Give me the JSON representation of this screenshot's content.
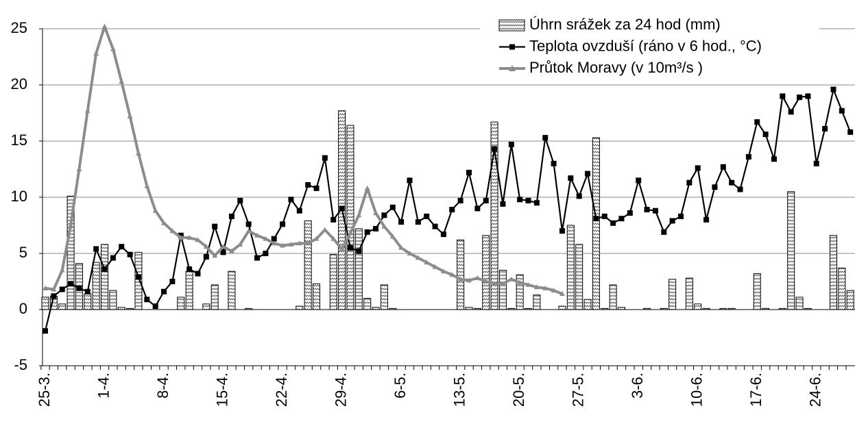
{
  "chart_data": {
    "type": "bar-line",
    "categories": [
      "25-3.",
      null,
      null,
      null,
      null,
      null,
      null,
      "1-4.",
      null,
      null,
      null,
      null,
      null,
      null,
      "8-4.",
      null,
      null,
      null,
      null,
      null,
      null,
      "15-4.",
      null,
      null,
      null,
      null,
      null,
      null,
      "22-4.",
      null,
      null,
      null,
      null,
      null,
      null,
      "29-4.",
      null,
      null,
      null,
      null,
      null,
      null,
      "6-5.",
      null,
      null,
      null,
      null,
      null,
      null,
      "13-5.",
      null,
      null,
      null,
      null,
      null,
      null,
      "20-5.",
      null,
      null,
      null,
      null,
      null,
      null,
      "27-5.",
      null,
      null,
      null,
      null,
      null,
      null,
      "3-6.",
      null,
      null,
      null,
      null,
      null,
      null,
      "10-6.",
      null,
      null,
      null,
      null,
      null,
      null,
      "17-6.",
      null,
      null,
      null,
      null,
      null,
      null,
      "24-6.",
      null,
      null,
      null,
      null
    ],
    "series": [
      {
        "name": "Úhrn srážek za 24 hod (mm)",
        "kind": "bar",
        "color": "#000000",
        "values": [
          1.1,
          1.2,
          0.5,
          10.1,
          4.1,
          1.4,
          4.2,
          5.8,
          1.7,
          0.2,
          0.1,
          5.1,
          0,
          0,
          0,
          0,
          1.1,
          3.4,
          0,
          0.5,
          2.2,
          0,
          3.4,
          0,
          0.1,
          0,
          0,
          0,
          0,
          0,
          0.3,
          7.9,
          2.3,
          0,
          4.9,
          17.7,
          16.4,
          7.2,
          1.0,
          0.2,
          2.2,
          0.1,
          0,
          0,
          0,
          0,
          0,
          0,
          0,
          6.2,
          0.2,
          0.1,
          6.6,
          16.7,
          3.5,
          0.1,
          3.1,
          0.1,
          1.3,
          0,
          0,
          0.3,
          7.5,
          5.8,
          0.9,
          15.3,
          0.1,
          2.2,
          0.2,
          0,
          0,
          0.1,
          0,
          0.1,
          2.7,
          0,
          2.8,
          0.5,
          0.1,
          0,
          0.1,
          0.1,
          0,
          0,
          3.2,
          0.1,
          0,
          0.1,
          10.5,
          1.1,
          0.1,
          0,
          0,
          6.6,
          3.7,
          1.7
        ]
      },
      {
        "name": "Teplota ovzduší (ráno v 6 hod., °C)",
        "kind": "line",
        "marker": "square",
        "color": "#000000",
        "values": [
          -1.9,
          1.2,
          1.8,
          2.3,
          1.9,
          1.6,
          5.4,
          3.6,
          4.6,
          5.6,
          4.9,
          2.9,
          0.9,
          0.3,
          1.6,
          2.5,
          6.6,
          3.6,
          3.2,
          4.7,
          7.4,
          5.1,
          8.3,
          9.7,
          7.6,
          4.6,
          5.0,
          6.3,
          7.6,
          9.8,
          8.8,
          11.1,
          10.8,
          13.5,
          8.0,
          9.0,
          5.5,
          5.2,
          6.9,
          7.2,
          8.4,
          9.1,
          7.8,
          11.5,
          7.8,
          8.3,
          7.4,
          6.7,
          8.9,
          9.7,
          12.2,
          9.0,
          9.7,
          14.3,
          9.4,
          14.7,
          9.8,
          9.7,
          9.5,
          15.3,
          13.0,
          7.0,
          11.7,
          10.1,
          12.1,
          8.1,
          8.3,
          7.7,
          8.1,
          8.6,
          11.5,
          8.9,
          8.8,
          6.9,
          7.9,
          8.3,
          11.3,
          12.6,
          8.0,
          10.9,
          12.7,
          11.3,
          10.7,
          13.6,
          16.7,
          15.6,
          13.4,
          19.0,
          17.6,
          18.9,
          19.0,
          13.0,
          16.1,
          19.6,
          17.7,
          15.8
        ]
      },
      {
        "name": "Průtok Moravy (v 10m³/s )",
        "kind": "line",
        "marker": "triangle",
        "color": "#8c8c8c",
        "values": [
          1.9,
          1.8,
          3.5,
          7.5,
          12.5,
          17.7,
          22.8,
          25.2,
          23.2,
          20.3,
          17.2,
          13.9,
          11.0,
          8.8,
          7.7,
          7.0,
          6.4,
          6.4,
          6.2,
          5.6,
          4.8,
          5.6,
          5.2,
          5.8,
          7.0,
          6.6,
          6.3,
          5.9,
          5.7,
          5.8,
          5.9,
          5.9,
          6.3,
          7.1,
          6.3,
          5.4,
          6.8,
          8.4,
          10.8,
          8.6,
          7.4,
          6.5,
          5.5,
          5.0,
          4.6,
          4.2,
          3.8,
          3.4,
          3.1,
          2.7,
          2.6,
          2.8,
          2.5,
          2.3,
          2.3,
          2.7,
          2.4,
          2.2,
          2.0,
          1.9,
          1.7,
          1.4,
          null,
          null,
          null,
          null,
          null,
          null,
          null,
          null,
          null,
          null,
          null,
          null,
          null,
          null,
          null,
          null,
          null,
          null,
          null,
          null,
          null,
          null,
          null,
          null,
          null,
          null,
          null,
          null,
          null,
          null,
          null,
          null,
          null,
          null
        ]
      }
    ],
    "ylim": [
      -5,
      25
    ],
    "yticks": [
      -5,
      0,
      5,
      10,
      15,
      20,
      25
    ],
    "grid": true,
    "legend": "top-right"
  }
}
